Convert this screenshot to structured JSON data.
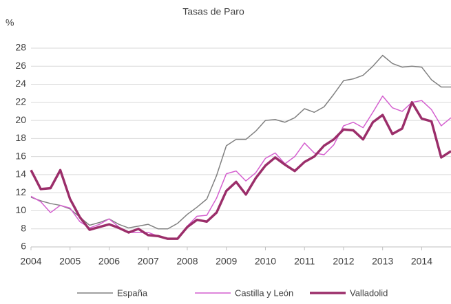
{
  "chart_data": {
    "type": "line",
    "title": "Tasas de Paro",
    "y_label": "%",
    "x": [
      2004,
      2004.25,
      2004.5,
      2004.75,
      2005,
      2005.25,
      2005.5,
      2005.75,
      2006,
      2006.25,
      2006.5,
      2006.75,
      2007,
      2007.25,
      2007.5,
      2007.75,
      2008,
      2008.25,
      2008.5,
      2008.75,
      2009,
      2009.25,
      2009.5,
      2009.75,
      2010,
      2010.25,
      2010.5,
      2010.75,
      2011,
      2011.25,
      2011.5,
      2011.75,
      2012,
      2012.25,
      2012.5,
      2012.75,
      2013,
      2013.25,
      2013.5,
      2013.75,
      2014,
      2014.25,
      2014.5,
      2014.75
    ],
    "series": [
      {
        "name": "España",
        "color": "#808080",
        "width": 1.5,
        "values": [
          11.5,
          11.1,
          10.8,
          10.6,
          10.2,
          9.3,
          8.4,
          8.7,
          9.1,
          8.5,
          8.1,
          8.3,
          8.5,
          8.0,
          8.0,
          8.6,
          9.6,
          10.4,
          11.3,
          13.9,
          17.2,
          17.9,
          17.9,
          18.8,
          20.0,
          20.1,
          19.8,
          20.3,
          21.3,
          20.9,
          21.5,
          22.9,
          24.4,
          24.6,
          25.0,
          26.0,
          27.2,
          26.3,
          25.9,
          26.0,
          25.9,
          24.5,
          23.7,
          23.7
        ]
      },
      {
        "name": "Castilla y León",
        "color": "#d45fcf",
        "width": 1.5,
        "values": [
          11.6,
          11.0,
          9.8,
          10.6,
          10.3,
          8.8,
          8.1,
          8.5,
          9.1,
          8.2,
          7.6,
          7.6,
          7.6,
          7.2,
          6.9,
          6.9,
          8.3,
          9.4,
          9.5,
          11.4,
          14.1,
          14.4,
          13.3,
          14.2,
          15.8,
          16.4,
          15.2,
          16.0,
          17.5,
          16.4,
          16.2,
          17.3,
          19.4,
          19.8,
          19.2,
          20.9,
          22.7,
          21.4,
          21.0,
          22.0,
          22.2,
          21.2,
          19.4,
          20.3
        ]
      },
      {
        "name": "Valladolid",
        "color": "#9b2e6a",
        "width": 3.5,
        "values": [
          14.5,
          12.4,
          12.5,
          14.5,
          11.3,
          9.3,
          7.9,
          8.2,
          8.5,
          8.1,
          7.6,
          8.0,
          7.3,
          7.2,
          6.9,
          6.9,
          8.2,
          9.0,
          8.8,
          9.8,
          12.2,
          13.2,
          11.8,
          13.6,
          15.0,
          15.9,
          15.1,
          14.4,
          15.4,
          16.0,
          17.2,
          17.9,
          19.0,
          18.9,
          17.9,
          19.8,
          20.6,
          18.5,
          19.1,
          22.0,
          20.2,
          19.9,
          15.9,
          16.6
        ]
      }
    ],
    "xlim": [
      2004,
      2014.75
    ],
    "xticks": [
      2004,
      2005,
      2006,
      2007,
      2008,
      2009,
      2010,
      2011,
      2012,
      2013,
      2014
    ],
    "ylim": [
      6,
      28
    ],
    "yticks": [
      6,
      8,
      10,
      12,
      14,
      16,
      18,
      20,
      22,
      24,
      26,
      28
    ],
    "grid": true,
    "legend": "bottom"
  }
}
